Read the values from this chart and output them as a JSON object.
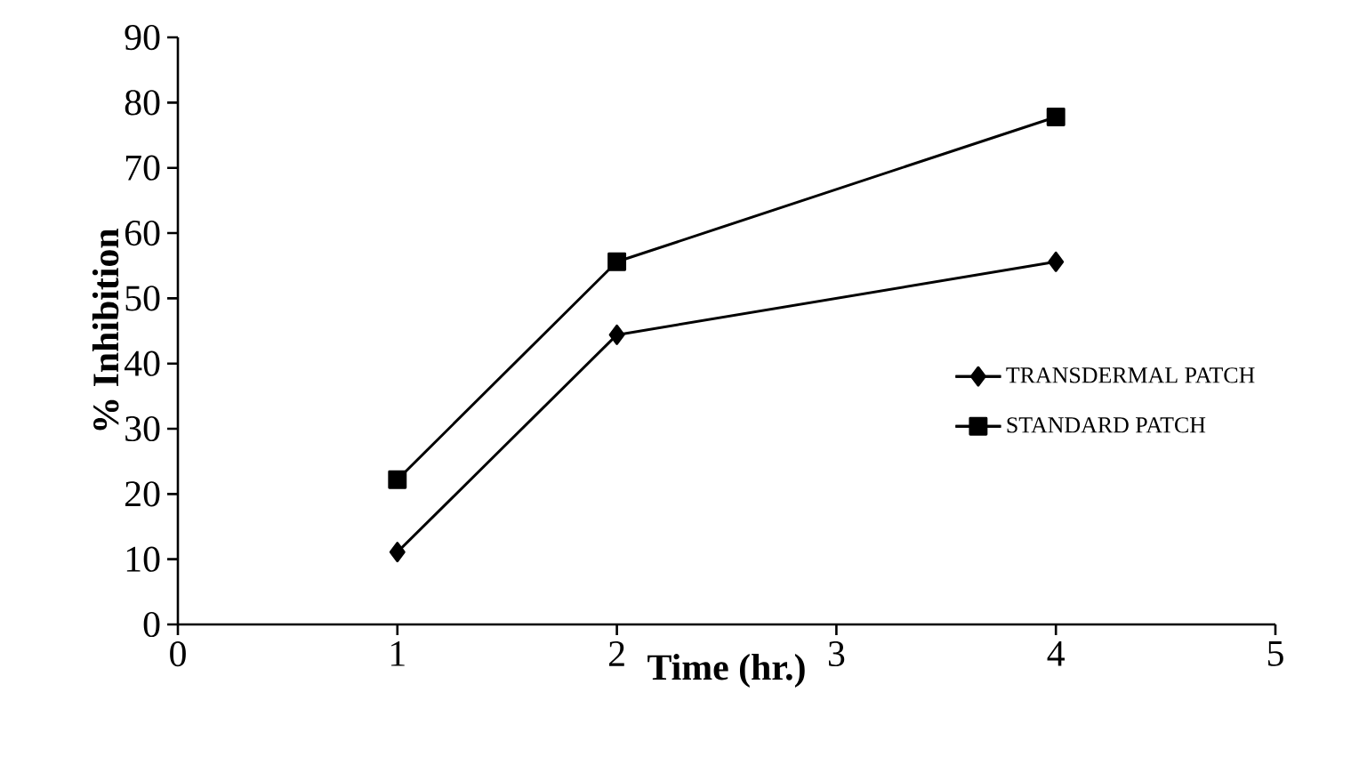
{
  "chart_data": {
    "type": "line",
    "xlabel": "Time (hr.)",
    "ylabel": "% Inhibition",
    "xlim": [
      0,
      5
    ],
    "xticks": [
      0,
      1,
      2,
      3,
      4,
      5
    ],
    "ylim": [
      0,
      90
    ],
    "yticks": [
      0,
      10,
      20,
      30,
      40,
      50,
      60,
      70,
      80,
      90
    ],
    "grid": false,
    "legend": "right",
    "line_style": "solid",
    "series": [
      {
        "name": "TRANSDERMAL PATCH",
        "color": "#000000",
        "marker": "diamond",
        "x": [
          1,
          2,
          4
        ],
        "values": [
          11.1,
          44.4,
          55.6
        ]
      },
      {
        "name": "STANDARD PATCH",
        "color": "#000000",
        "marker": "square",
        "x": [
          1,
          2,
          4
        ],
        "values": [
          22.2,
          55.6,
          77.8
        ]
      }
    ]
  }
}
